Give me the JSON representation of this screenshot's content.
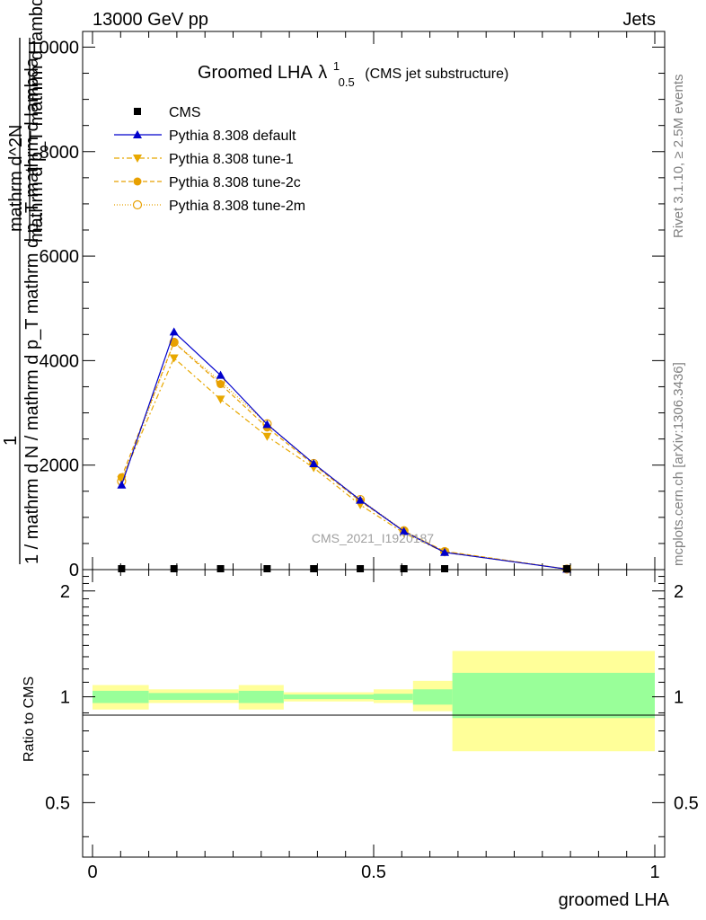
{
  "header": {
    "energy_label": "13000 GeV pp",
    "category_label": "Jets"
  },
  "side_labels": {
    "rivet": "Rivet 3.1.10, ≥ 2.5M events",
    "mcplots": "mcplots.cern.ch [arXiv:1306.3436]"
  },
  "chart_data": [
    {
      "type": "line",
      "title_main": "Groomed LHA",
      "title_lambda": "λ",
      "title_sup": "1",
      "title_sub": "0.5",
      "title_note": "(CMS jet substructure)",
      "ylabel_numerator": "1",
      "ylabel_line1": "mathrm d N",
      "ylabel_line2": "mathrm d^2N",
      "ylabel_line3": "mathrm d p_T mathrm d lambda",
      "ylabel_full": "1 / mathrm d N / mathrm d p_T mathrm d p_T mathrm d lambda",
      "watermark": "CMS_2021_I1920187",
      "xlim": [
        0,
        1
      ],
      "ylim": [
        0,
        10300
      ],
      "yticks": [
        0,
        2000,
        4000,
        6000,
        8000,
        10000
      ],
      "ytick_labels": [
        "0",
        "2000",
        "4000",
        "6000",
        "8000",
        "10000"
      ],
      "x": [
        0.05,
        0.14,
        0.22,
        0.3,
        0.38,
        0.46,
        0.535,
        0.605,
        0.815
      ],
      "series": [
        {
          "name": "CMS",
          "color": "#000000",
          "marker": "square",
          "values": [
            0,
            0,
            0,
            0,
            0,
            0,
            0,
            0,
            0
          ]
        },
        {
          "name": "Pythia 8.308 default",
          "color": "#0000cc",
          "marker": "triangle-up",
          "dash": "none",
          "values": [
            1620,
            4550,
            3720,
            2780,
            2030,
            1330,
            730,
            330,
            10
          ]
        },
        {
          "name": "Pythia 8.308 tune-1",
          "color": "#e8a800",
          "marker": "triangle-down",
          "dash": "6,3,2,3",
          "values": [
            1720,
            4050,
            3260,
            2550,
            1950,
            1240,
            700,
            330,
            10
          ]
        },
        {
          "name": "Pythia 8.308 tune-2c",
          "color": "#e8a000",
          "marker": "circle-filled",
          "dash": "5,3",
          "values": [
            1770,
            4350,
            3550,
            2720,
            2010,
            1310,
            740,
            350,
            10
          ]
        },
        {
          "name": "Pythia 8.308 tune-2m",
          "color": "#e8a000",
          "marker": "circle-open",
          "dash": "1,2",
          "values": [
            1690,
            4350,
            3600,
            2790,
            2030,
            1340,
            745,
            345,
            10
          ]
        }
      ]
    },
    {
      "type": "area",
      "ylabel": "Ratio to CMS",
      "xlabel": "groomed LHA",
      "xlim": [
        0,
        1
      ],
      "ylim": [
        0.35,
        2.3
      ],
      "yticks": [
        0.5,
        1,
        2
      ],
      "ytick_labels": [
        "0.5",
        "1",
        "2"
      ],
      "xticks": [
        0,
        0.5,
        1
      ],
      "xtick_labels": [
        "0",
        "0.5",
        "1"
      ],
      "bins": [
        {
          "lo": 0.0,
          "hi": 0.1,
          "inner": [
            0.96,
            1.04
          ],
          "outer": [
            0.92,
            1.08
          ]
        },
        {
          "lo": 0.1,
          "hi": 0.26,
          "inner": [
            0.98,
            1.025
          ],
          "outer": [
            0.96,
            1.05
          ]
        },
        {
          "lo": 0.26,
          "hi": 0.34,
          "inner": [
            0.96,
            1.04
          ],
          "outer": [
            0.92,
            1.08
          ]
        },
        {
          "lo": 0.34,
          "hi": 0.5,
          "inner": [
            0.985,
            1.015
          ],
          "outer": [
            0.97,
            1.03
          ]
        },
        {
          "lo": 0.5,
          "hi": 0.57,
          "inner": [
            0.98,
            1.02
          ],
          "outer": [
            0.96,
            1.05
          ]
        },
        {
          "lo": 0.57,
          "hi": 0.64,
          "inner": [
            0.95,
            1.05
          ],
          "outer": [
            0.91,
            1.11
          ]
        },
        {
          "lo": 0.64,
          "hi": 1.0,
          "inner": [
            0.87,
            1.17
          ],
          "outer": [
            0.7,
            1.35
          ]
        }
      ],
      "band_colors": {
        "inner": "#99ff99",
        "outer": "#ffff99"
      }
    }
  ]
}
